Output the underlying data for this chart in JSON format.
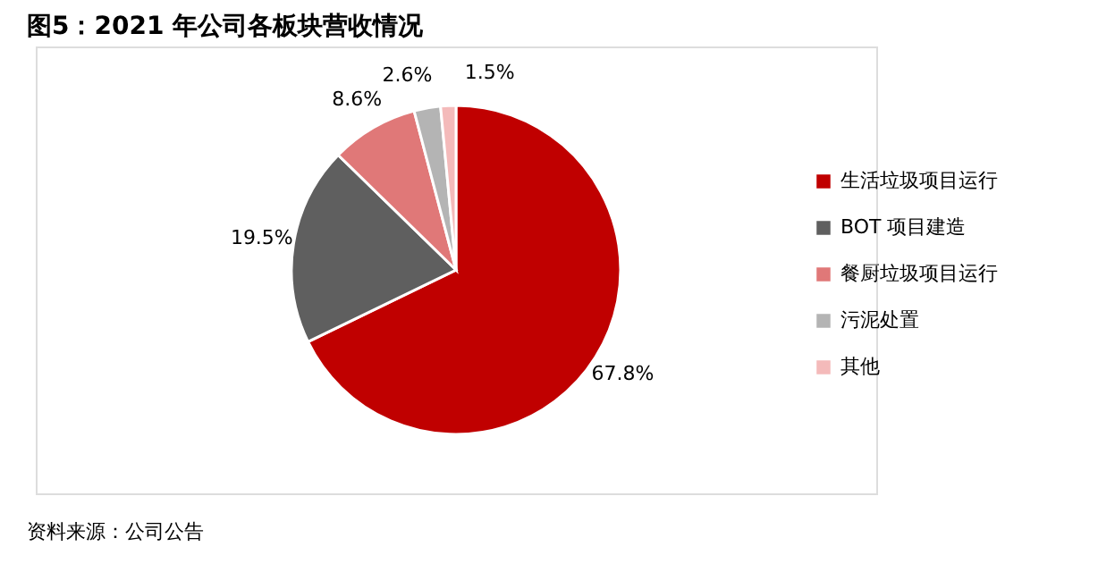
{
  "chart_data": {
    "type": "pie",
    "title": "图5：2021 年公司各板块营收情况",
    "categories": [
      "生活垃圾项目运行",
      "BOT 项目建造",
      "餐厨垃圾项目运行",
      "污泥处置",
      "其他"
    ],
    "values": [
      67.8,
      19.5,
      8.6,
      2.6,
      1.5
    ],
    "colors": [
      "#c00000",
      "#5f5f5f",
      "#e07878",
      "#b4b4b4",
      "#f4baba"
    ],
    "value_labels": [
      "67.8%",
      "19.5%",
      "8.6%",
      "2.6%",
      "1.5%"
    ],
    "legend": "right",
    "annotations": [
      "资料来源：公司公告"
    ]
  }
}
